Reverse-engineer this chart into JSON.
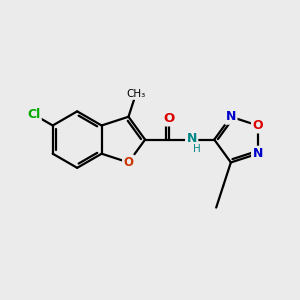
{
  "background_color": "#ebebeb",
  "bond_color": "#000000",
  "bond_width": 1.6,
  "figsize": [
    3.0,
    3.0
  ],
  "dpi": 100,
  "colors": {
    "O": "#dd0000",
    "N": "#0000cc",
    "N_amide": "#008888",
    "Cl": "#00aa00",
    "O_furan": "#cc3300",
    "C": "#000000"
  }
}
